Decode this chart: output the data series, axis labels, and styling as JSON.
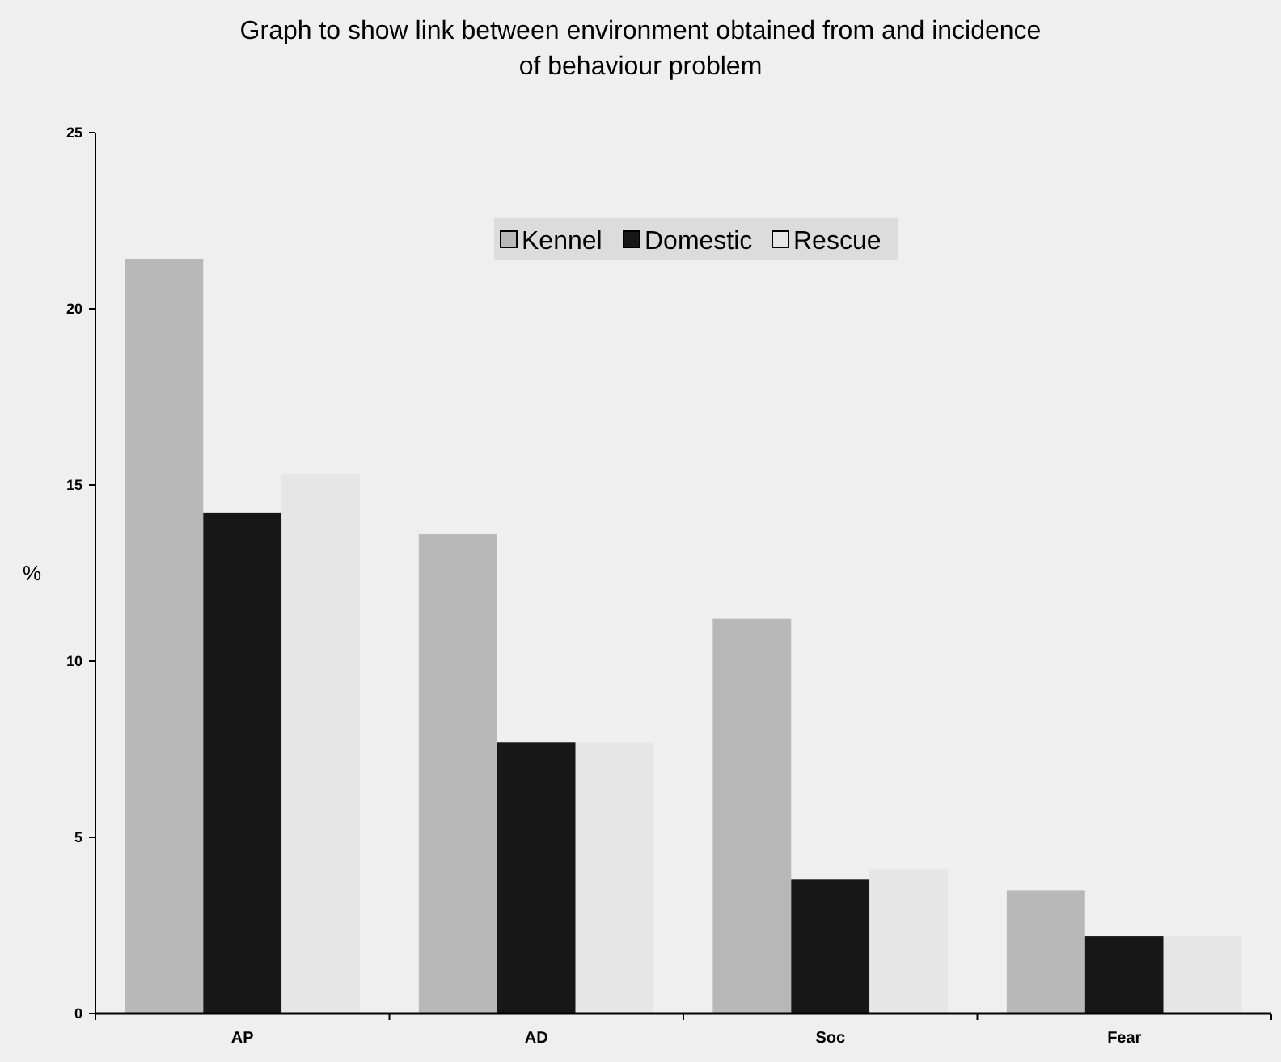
{
  "chart_data": {
    "type": "bar",
    "title": "Graph to show link between environment obtained from and incidence\nof behaviour problem",
    "ylabel": "%",
    "categories": [
      "AP",
      "AD",
      "Soc",
      "Fear"
    ],
    "series": [
      {
        "name": "Kennel",
        "color": "#b8b8b8",
        "values": [
          21.4,
          13.6,
          11.2,
          3.5
        ]
      },
      {
        "name": "Domestic",
        "color": "#171717",
        "values": [
          14.2,
          7.7,
          3.8,
          2.2
        ]
      },
      {
        "name": "Rescue",
        "color": "#e6e6e6",
        "values": [
          15.3,
          7.7,
          4.1,
          2.2
        ]
      }
    ],
    "ylim": [
      0,
      25
    ],
    "yticks": [
      0,
      5,
      10,
      15,
      20,
      25
    ],
    "grid": false,
    "legend": "top"
  }
}
